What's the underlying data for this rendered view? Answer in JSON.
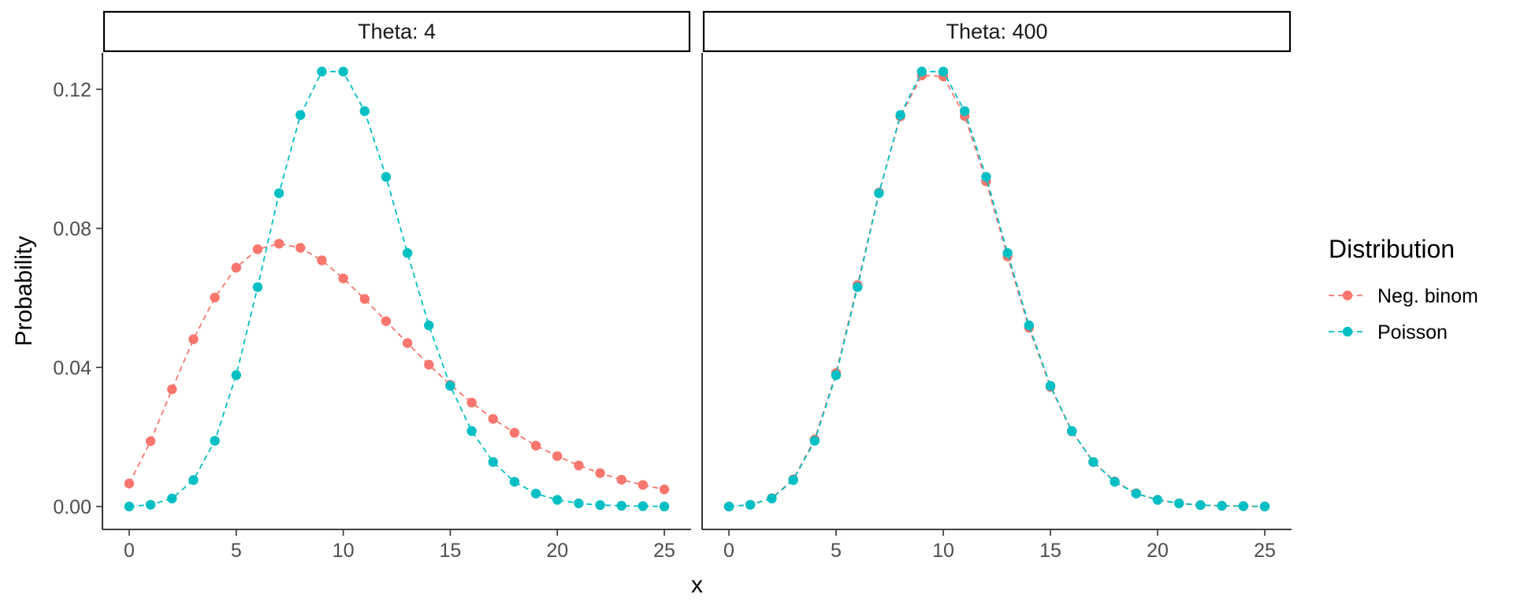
{
  "chart_data": {
    "type": "line",
    "xlabel": "x",
    "ylabel": "Probability",
    "xlim": [
      -1.25,
      26.25
    ],
    "ylim": [
      -0.0066,
      0.1305
    ],
    "xticks": [
      0,
      5,
      10,
      15,
      20,
      25
    ],
    "yticks": [
      0.0,
      0.04,
      0.08,
      0.12
    ],
    "ytick_labels": [
      "0.00",
      "0.04",
      "0.08",
      "0.12"
    ],
    "x": [
      0,
      1,
      2,
      3,
      4,
      5,
      6,
      7,
      8,
      9,
      10,
      11,
      12,
      13,
      14,
      15,
      16,
      17,
      18,
      19,
      20,
      21,
      22,
      23,
      24,
      25
    ],
    "legend": {
      "title": "Distribution",
      "placement": "right",
      "entries": [
        "Neg. binom",
        "Poisson"
      ]
    },
    "colors": {
      "Neg. binom": "#F8766D",
      "Poisson": "#00BFC4"
    },
    "panels": [
      {
        "strip": "Theta: 4",
        "series": [
          {
            "name": "Neg. binom",
            "values": [
              0.0066,
              0.0188,
              0.0337,
              0.0481,
              0.0601,
              0.0687,
              0.074,
              0.0756,
              0.0744,
              0.0708,
              0.0656,
              0.0597,
              0.0533,
              0.047,
              0.0408,
              0.035,
              0.0299,
              0.0252,
              0.0212,
              0.0175,
              0.0145,
              0.0118,
              0.0096,
              0.0077,
              0.0062,
              0.0049
            ]
          },
          {
            "name": "Poisson",
            "values": [
              0.0,
              0.0005,
              0.0023,
              0.0076,
              0.0189,
              0.0378,
              0.0631,
              0.0901,
              0.1126,
              0.1251,
              0.1251,
              0.1137,
              0.0948,
              0.0729,
              0.0521,
              0.0347,
              0.0217,
              0.0128,
              0.0071,
              0.0037,
              0.0019,
              0.0009,
              0.0004,
              0.0002,
              0.0001,
              0.0
            ]
          }
        ]
      },
      {
        "strip": "Theta: 400",
        "series": [
          {
            "name": "Neg. binom",
            "values": [
              0.0,
              0.0005,
              0.0024,
              0.0078,
              0.0193,
              0.0384,
              0.0637,
              0.0903,
              0.1122,
              0.124,
              0.1237,
              0.1123,
              0.0935,
              0.0719,
              0.0514,
              0.0344,
              0.0216,
              0.0128,
              0.0072,
              0.0038,
              0.0019,
              0.0009,
              0.0004,
              0.0002,
              0.0001,
              0.0
            ]
          },
          {
            "name": "Poisson",
            "values": [
              0.0,
              0.0005,
              0.0023,
              0.0076,
              0.0189,
              0.0378,
              0.0631,
              0.0901,
              0.1126,
              0.1251,
              0.1251,
              0.1137,
              0.0948,
              0.0729,
              0.0521,
              0.0347,
              0.0217,
              0.0128,
              0.0071,
              0.0037,
              0.0019,
              0.0009,
              0.0004,
              0.0002,
              0.0001,
              0.0
            ]
          }
        ]
      }
    ]
  }
}
